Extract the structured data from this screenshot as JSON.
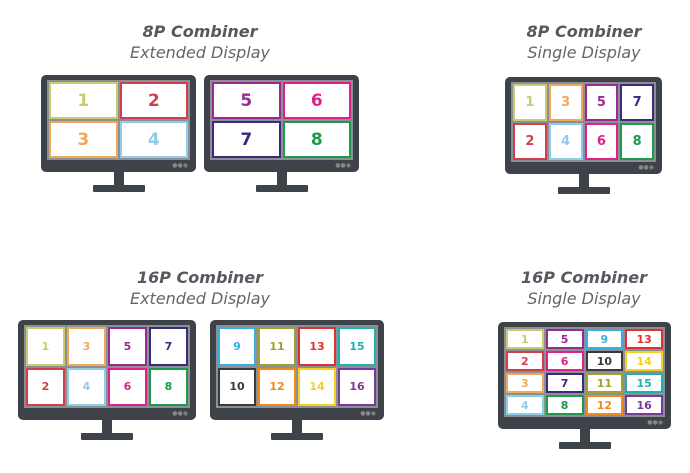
{
  "groups": [
    {
      "title": "8P Combiner",
      "subtitle": "Extended Display"
    },
    {
      "title": "8P Combiner",
      "subtitle": "Single Display"
    },
    {
      "title": "16P Combiner",
      "subtitle": "Extended Display"
    },
    {
      "title": "16P Combiner",
      "subtitle": "Single Display"
    }
  ],
  "colors": {
    "1": "#c9cc6c",
    "2": "#d1404a",
    "3": "#f0a858",
    "4": "#8ecde8",
    "5": "#9a2a92",
    "6": "#e0208a",
    "7": "#3a2a80",
    "8": "#1f9a4a",
    "9": "#3aaee0",
    "10": "#3a3a3a",
    "11": "#a0a030",
    "12": "#f08a20",
    "13": "#e03030",
    "14": "#f5d020",
    "15": "#20b0b0",
    "16": "#7a3a9a"
  },
  "monitors": [
    {
      "group": 0,
      "rows": [
        [
          "1",
          "2"
        ],
        [
          "3",
          "4"
        ]
      ]
    },
    {
      "group": 0,
      "rows": [
        [
          "5",
          "6"
        ],
        [
          "7",
          "8"
        ]
      ]
    },
    {
      "group": 1,
      "rows": [
        [
          "1",
          "3",
          "5",
          "7"
        ],
        [
          "2",
          "4",
          "6",
          "8"
        ]
      ]
    },
    {
      "group": 2,
      "rows": [
        [
          "1",
          "3",
          "5",
          "7"
        ],
        [
          "2",
          "4",
          "6",
          "8"
        ]
      ]
    },
    {
      "group": 2,
      "rows": [
        [
          "9",
          "11",
          "13",
          "15"
        ],
        [
          "10",
          "12",
          "14",
          "16"
        ]
      ]
    },
    {
      "group": 3,
      "rows": [
        [
          "1",
          "5",
          "9",
          "13"
        ],
        [
          "2",
          "6",
          "10",
          "14"
        ],
        [
          "3",
          "7",
          "11",
          "15"
        ],
        [
          "4",
          "8",
          "12",
          "16"
        ]
      ]
    }
  ]
}
